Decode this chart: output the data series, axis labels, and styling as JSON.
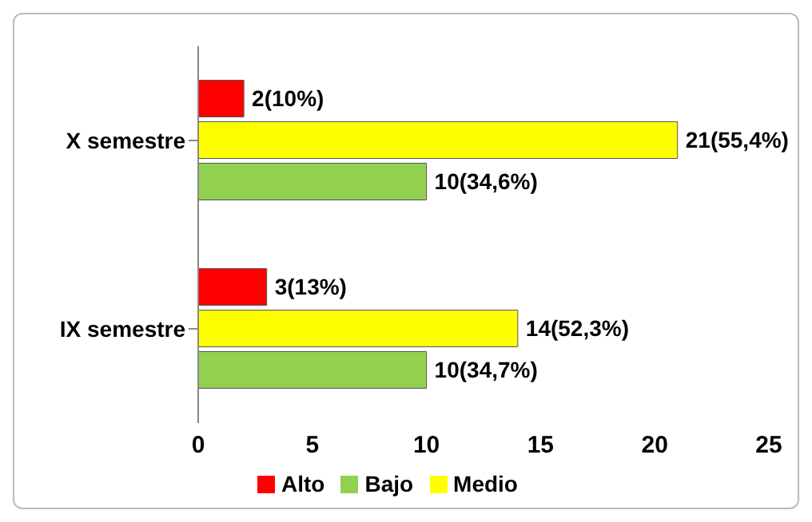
{
  "chart_data": {
    "type": "bar",
    "orientation": "horizontal",
    "categories": [
      "X semestre",
      "IX semestre"
    ],
    "series": [
      {
        "name": "Alto",
        "color": "#ff0000",
        "values": [
          2,
          3
        ],
        "value_labels": [
          "2(10%)",
          "3(13%)"
        ]
      },
      {
        "name": "Medio",
        "color": "#ffff00",
        "values": [
          21,
          14
        ],
        "value_labels": [
          "21(55,4%)",
          "14(52,3%)"
        ]
      },
      {
        "name": "Bajo",
        "color": "#92d050",
        "values": [
          10,
          10
        ],
        "value_labels": [
          "10(34,6%)",
          "10(34,7%)"
        ]
      }
    ],
    "xlim": [
      0,
      25
    ],
    "xticks": [
      0,
      5,
      10,
      15,
      20,
      25
    ],
    "grid": false,
    "legend": "bottom"
  }
}
